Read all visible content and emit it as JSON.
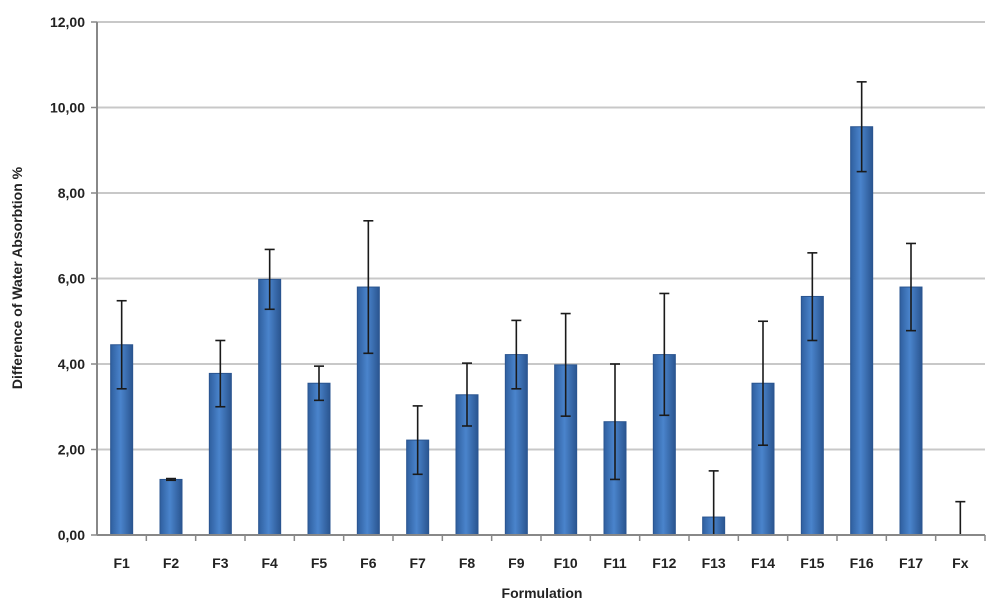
{
  "chart_data": {
    "type": "bar",
    "title": "",
    "xlabel": "Formulation",
    "ylabel": "Difference of Water Absorbtion %",
    "ylim": [
      0,
      12
    ],
    "yticks": [
      "0,00",
      "2,00",
      "4,00",
      "6,00",
      "8,00",
      "10,00",
      "12,00"
    ],
    "grid": true,
    "categories": [
      "F1",
      "F2",
      "F3",
      "F4",
      "F5",
      "F6",
      "F7",
      "F8",
      "F9",
      "F10",
      "F11",
      "F12",
      "F13",
      "F14",
      "F15",
      "F16",
      "F17",
      "Fx"
    ],
    "values": [
      4.45,
      1.3,
      3.78,
      5.98,
      3.55,
      5.8,
      2.22,
      3.28,
      4.22,
      3.98,
      2.65,
      4.22,
      0.42,
      3.55,
      5.58,
      9.55,
      5.8,
      0
    ],
    "error_upper": [
      5.48,
      1.32,
      4.55,
      6.68,
      3.95,
      7.35,
      3.02,
      4.02,
      5.02,
      5.18,
      4.0,
      5.65,
      1.5,
      5.0,
      6.6,
      10.6,
      6.82,
      0.78
    ],
    "error_lower": [
      3.42,
      1.28,
      3.0,
      5.28,
      3.15,
      4.25,
      1.42,
      2.55,
      3.42,
      2.78,
      1.3,
      2.8,
      0.0,
      2.1,
      4.55,
      8.5,
      4.78,
      0.0
    ],
    "colors": {
      "bar": "#3f76bf",
      "bar_dark": "#2a5590",
      "grid": "#c8c8c8",
      "error": "#1a1a1a"
    }
  }
}
